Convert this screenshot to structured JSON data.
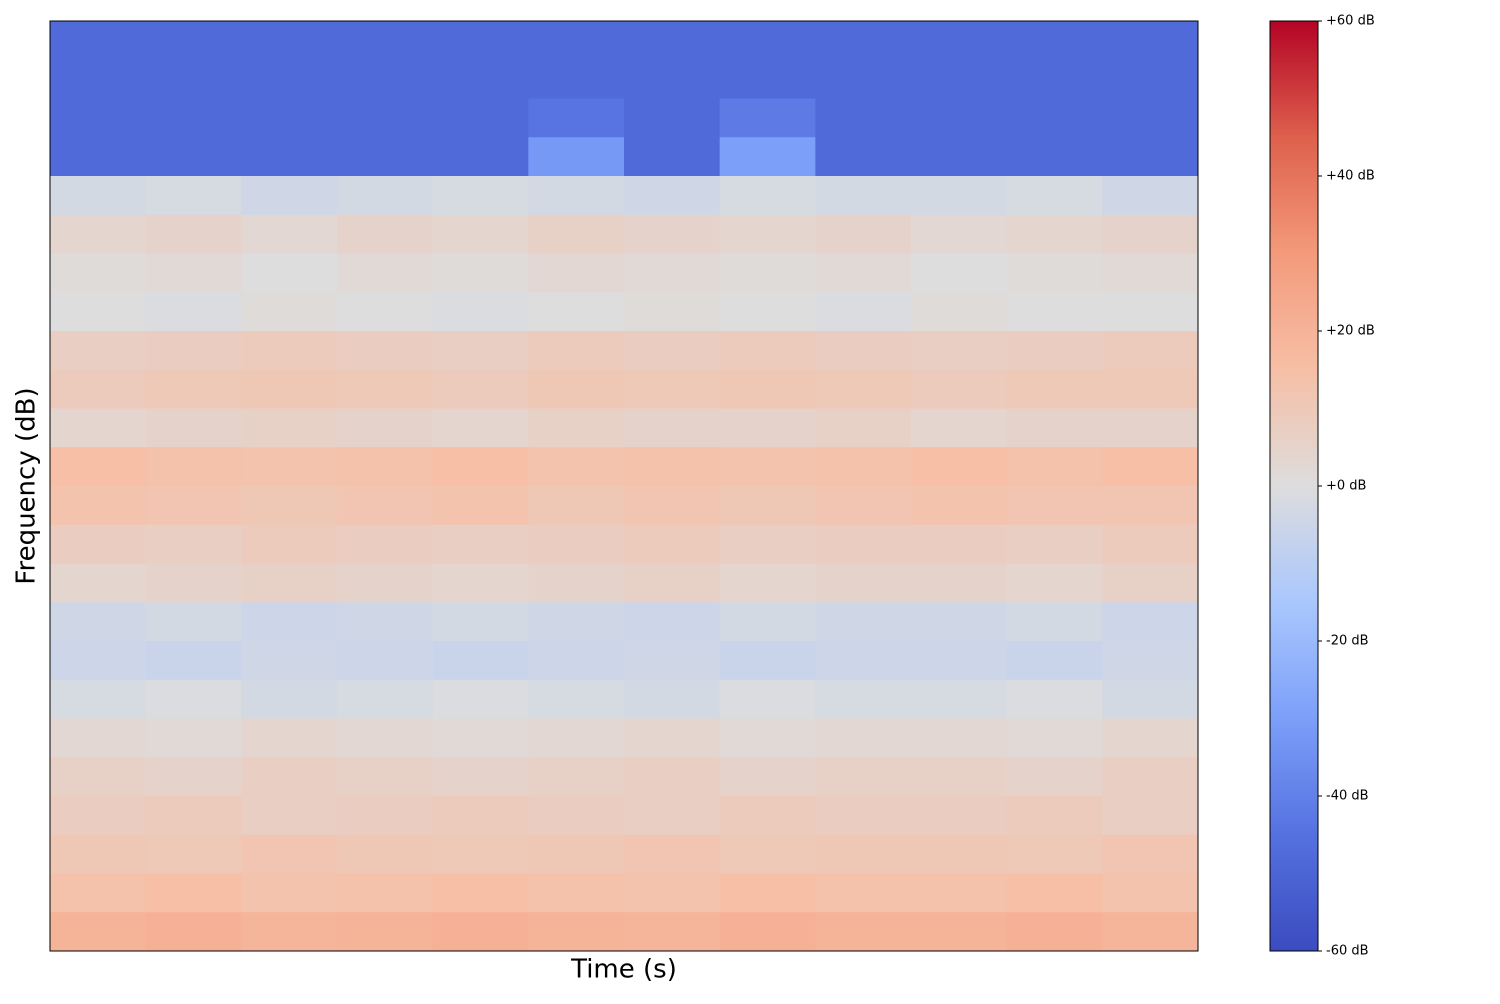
{
  "chart_data": {
    "type": "spectrogram",
    "xlabel": "Time (s)",
    "ylabel": "Frequency (dB)",
    "colormap": "coolwarm",
    "zlim": [
      -60,
      60
    ],
    "zticks": [
      {
        "value": 60,
        "label": "+60 dB"
      },
      {
        "value": 40,
        "label": "+40 dB"
      },
      {
        "value": 20,
        "label": "+20 dB"
      },
      {
        "value": 0,
        "label": "+0 dB"
      },
      {
        "value": -20,
        "label": "-20 dB"
      },
      {
        "value": -40,
        "label": "-40 dB"
      },
      {
        "value": -60,
        "label": "-60 dB"
      }
    ],
    "z": [
      [
        -48,
        -48,
        -48,
        -48,
        -48,
        -48,
        -48,
        -48,
        -48,
        -48,
        -48,
        -48
      ],
      [
        -48,
        -48,
        -48,
        -48,
        -48,
        -48,
        -48,
        -48,
        -48,
        -48,
        -48,
        -48
      ],
      [
        -48,
        -48,
        -48,
        -48,
        -48,
        -44,
        -48,
        -42,
        -48,
        -48,
        -48,
        -48
      ],
      [
        -48,
        -48,
        -48,
        -48,
        -48,
        -32,
        -48,
        -30,
        -48,
        -48,
        -48,
        -48
      ],
      [
        -3,
        -2,
        -4,
        -3,
        -2,
        -3,
        -4,
        -2,
        -3,
        -3,
        -2,
        -4
      ],
      [
        4,
        5,
        3,
        5,
        4,
        6,
        5,
        4,
        5,
        3,
        4,
        5
      ],
      [
        1,
        2,
        0,
        2,
        1,
        3,
        2,
        1,
        2,
        0,
        1,
        2
      ],
      [
        0,
        -1,
        1,
        0,
        -1,
        0,
        1,
        0,
        -1,
        1,
        0,
        0
      ],
      [
        7,
        8,
        9,
        8,
        7,
        9,
        8,
        9,
        8,
        7,
        8,
        9
      ],
      [
        9,
        10,
        11,
        10,
        9,
        11,
        10,
        11,
        10,
        9,
        10,
        10
      ],
      [
        4,
        5,
        6,
        5,
        4,
        6,
        5,
        5,
        6,
        4,
        5,
        5
      ],
      [
        15,
        14,
        13,
        14,
        15,
        13,
        14,
        13,
        14,
        15,
        14,
        15
      ],
      [
        13,
        12,
        11,
        12,
        13,
        11,
        12,
        11,
        12,
        13,
        12,
        12
      ],
      [
        8,
        7,
        9,
        8,
        7,
        8,
        9,
        7,
        8,
        8,
        7,
        9
      ],
      [
        4,
        5,
        6,
        5,
        4,
        5,
        6,
        4,
        5,
        5,
        4,
        6
      ],
      [
        -4,
        -3,
        -5,
        -4,
        -3,
        -4,
        -5,
        -3,
        -4,
        -4,
        -3,
        -5
      ],
      [
        -5,
        -6,
        -4,
        -5,
        -6,
        -5,
        -4,
        -6,
        -5,
        -5,
        -6,
        -4
      ],
      [
        -2,
        -1,
        -3,
        -2,
        -1,
        -2,
        -3,
        -1,
        -2,
        -2,
        -1,
        -3
      ],
      [
        3,
        2,
        4,
        3,
        2,
        3,
        4,
        2,
        3,
        3,
        2,
        4
      ],
      [
        6,
        5,
        7,
        6,
        5,
        6,
        7,
        5,
        6,
        6,
        5,
        7
      ],
      [
        8,
        9,
        7,
        8,
        9,
        8,
        7,
        9,
        8,
        8,
        9,
        7
      ],
      [
        11,
        10,
        12,
        11,
        10,
        11,
        12,
        10,
        11,
        11,
        10,
        12
      ],
      [
        14,
        15,
        13,
        14,
        15,
        14,
        13,
        15,
        14,
        14,
        15,
        13
      ],
      [
        20,
        21,
        19,
        20,
        21,
        20,
        19,
        21,
        20,
        20,
        21,
        19
      ]
    ]
  }
}
